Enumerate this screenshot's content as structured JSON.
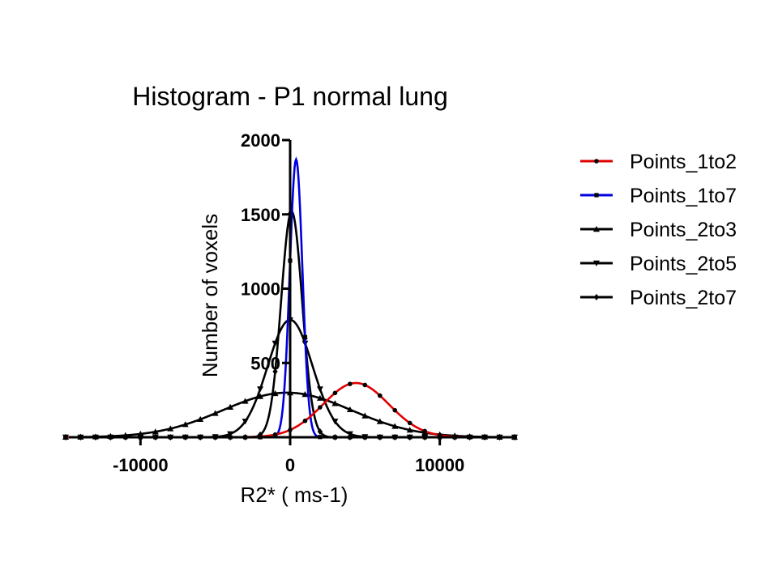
{
  "chart_data": {
    "type": "line",
    "title": "Histogram - P1 normal lung",
    "xlabel": "R2*    ( ms-1)",
    "ylabel": "Number  of voxels",
    "xlim": [
      -15000,
      15000
    ],
    "ylim": [
      0,
      2000
    ],
    "xticks": [
      -10000,
      0,
      10000
    ],
    "xtick_labels": [
      "-10000",
      "0",
      "10000"
    ],
    "yticks": [
      500,
      1000,
      1500,
      2000
    ],
    "ytick_labels": [
      "500",
      "1000",
      "1500",
      "2000"
    ],
    "legend_position": "right",
    "series": [
      {
        "name": "Points_1to2",
        "color": "#e00000",
        "marker": "circle",
        "curve": {
          "amplitude": 365,
          "mean": 4400,
          "sigma": 2200
        }
      },
      {
        "name": "Points_1to7",
        "color": "#0000e0",
        "marker": "square",
        "curve": {
          "amplitude": 1870,
          "mean": 400,
          "sigma": 420
        }
      },
      {
        "name": "Points_2to3",
        "color": "#000000",
        "marker": "triangle-up",
        "curve": {
          "amplitude": 300,
          "mean": -200,
          "sigma": 4300
        }
      },
      {
        "name": "Points_2to5",
        "color": "#000000",
        "marker": "triangle-down",
        "curve": {
          "amplitude": 790,
          "mean": 0,
          "sigma": 1500
        }
      },
      {
        "name": "Points_2to7",
        "color": "#000000",
        "marker": "diamond",
        "curve": {
          "amplitude": 1520,
          "mean": 100,
          "sigma": 700
        }
      }
    ]
  }
}
